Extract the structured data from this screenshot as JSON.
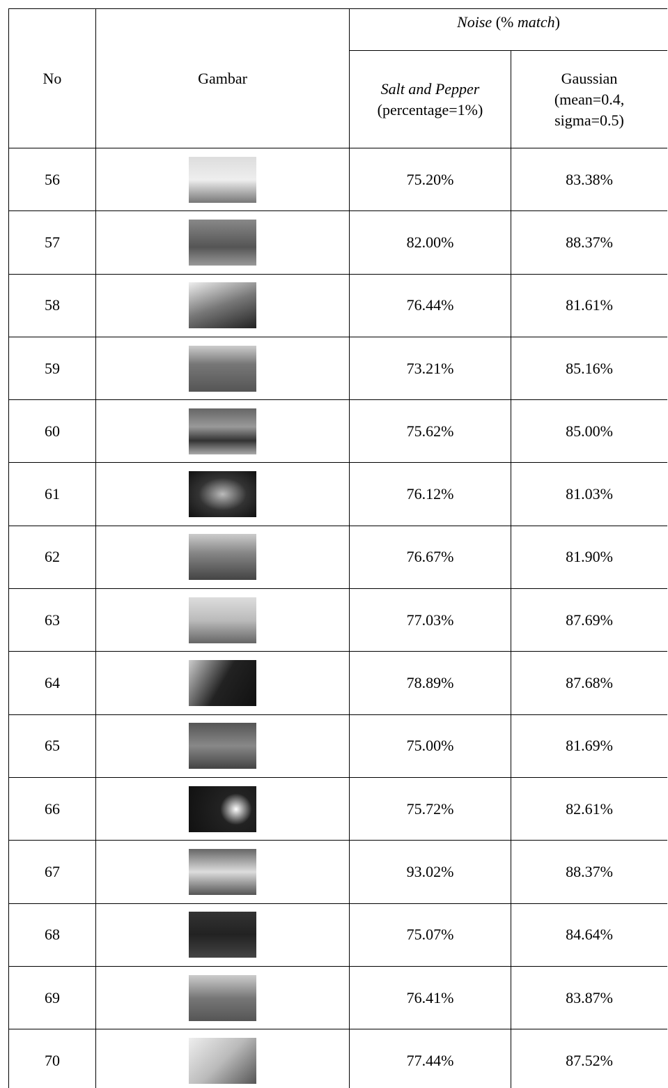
{
  "table": {
    "header": {
      "no": "No",
      "image": "Gambar",
      "noise": [
        "Noise",
        " (% ",
        "match",
        ")"
      ],
      "salt_pepper": [
        "Salt and Pepper",
        "(percentage=1%)"
      ],
      "gaussian": [
        "Gaussian",
        "(mean=0.4,",
        "sigma=0.5)"
      ]
    },
    "rows": [
      [
        "56",
        "75.20%",
        "83.38%"
      ],
      [
        "57",
        "82.00%",
        "88.37%"
      ],
      [
        "58",
        "76.44%",
        "81.61%"
      ],
      [
        "59",
        "73.21%",
        "85.16%"
      ],
      [
        "60",
        "75.62%",
        "85.00%"
      ],
      [
        "61",
        "76.12%",
        "81.03%"
      ],
      [
        "62",
        "76.67%",
        "81.90%"
      ],
      [
        "63",
        "77.03%",
        "87.69%"
      ],
      [
        "64",
        "78.89%",
        "87.68%"
      ],
      [
        "65",
        "75.00%",
        "81.69%"
      ],
      [
        "66",
        "75.72%",
        "82.61%"
      ],
      [
        "67",
        "93.02%",
        "88.37%"
      ],
      [
        "68",
        "75.07%",
        "84.64%"
      ],
      [
        "69",
        "76.41%",
        "83.87%"
      ],
      [
        "70",
        "77.44%",
        "87.52%"
      ]
    ]
  }
}
